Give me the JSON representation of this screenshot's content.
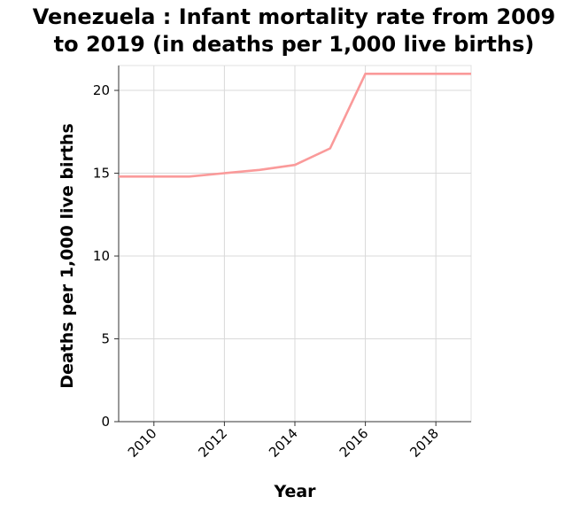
{
  "chart_data": {
    "type": "line",
    "title_line1": "Venezuela : Infant mortality rate from 2009",
    "title_line2": "to 2019 (in deaths per 1,000 live births)",
    "xlabel": "Year",
    "ylabel": "Deaths per 1,000 live births",
    "xlim": [
      2009,
      2019
    ],
    "ylim": [
      0,
      21.5
    ],
    "x_ticks": [
      2010,
      2012,
      2014,
      2016,
      2018
    ],
    "y_ticks": [
      0,
      5,
      10,
      15,
      20
    ],
    "grid": true,
    "line_color": "#fa9a9a",
    "x": [
      2009,
      2010,
      2011,
      2012,
      2013,
      2014,
      2015,
      2016,
      2017,
      2018,
      2019
    ],
    "values": [
      14.8,
      14.8,
      14.8,
      15.0,
      15.2,
      15.5,
      16.5,
      21.0,
      21.0,
      21.0,
      21.0
    ]
  }
}
